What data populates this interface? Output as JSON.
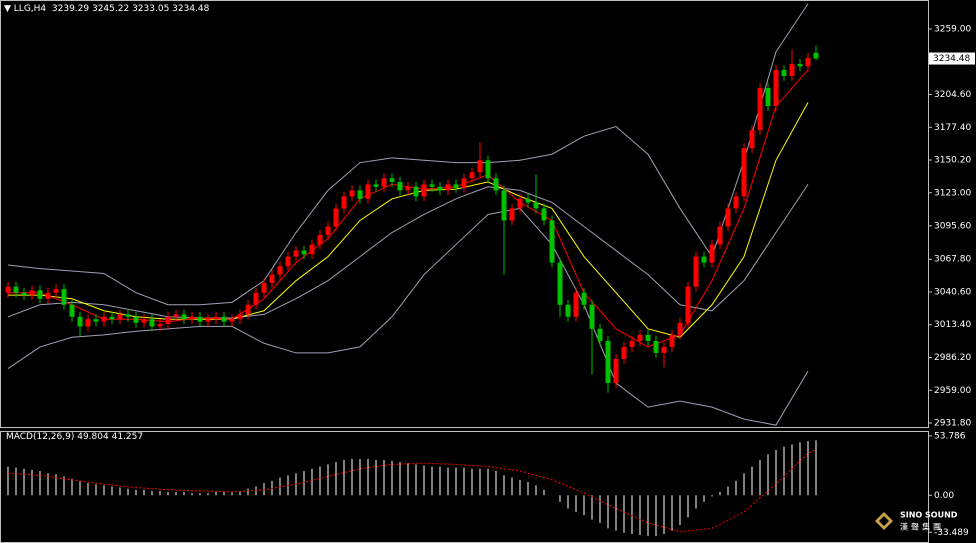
{
  "chart_data": [
    {
      "type": "candlestick",
      "title": "LLG,H4",
      "up_color": "#ff0000",
      "down_color": "#00c000",
      "open": [
        3040,
        3045,
        3040,
        3038,
        3042,
        3035,
        3040,
        3043,
        3030,
        3020,
        3012,
        3018,
        3016,
        3020,
        3018,
        3022,
        3020,
        3015,
        3018,
        3012,
        3014,
        3020,
        3022,
        3018,
        3020,
        3016,
        3018,
        3020,
        3016,
        3018,
        3022,
        3030,
        3040,
        3048,
        3055,
        3062,
        3070,
        3075,
        3072,
        3080,
        3088,
        3095,
        3110,
        3120,
        3125,
        3118,
        3130,
        3128,
        3135,
        3132,
        3125,
        3128,
        3120,
        3130,
        3128,
        3125,
        3130,
        3127,
        3135,
        3140,
        3150,
        3135,
        3125,
        3100,
        3110,
        3118,
        3115,
        3110,
        3100,
        3065,
        3030,
        3020,
        3040,
        3030,
        3010,
        3000,
        2965,
        2985,
        2995,
        3000,
        3005,
        3000,
        2990,
        2995,
        3005,
        3015,
        3045,
        3070,
        3065,
        3080,
        3095,
        3110,
        3120,
        3160,
        3175,
        3210,
        3195,
        3225,
        3220,
        3230,
        3228,
        3239.29
      ],
      "high": [
        3049,
        3049,
        3044,
        3046,
        3046,
        3044,
        3047,
        3047,
        3034,
        3024,
        3022,
        3022,
        3024,
        3024,
        3026,
        3026,
        3024,
        3022,
        3022,
        3018,
        3024,
        3026,
        3026,
        3024,
        3024,
        3022,
        3024,
        3024,
        3022,
        3026,
        3034,
        3044,
        3052,
        3059,
        3066,
        3074,
        3079,
        3079,
        3084,
        3092,
        3099,
        3114,
        3124,
        3129,
        3129,
        3134,
        3134,
        3139,
        3139,
        3136,
        3132,
        3132,
        3134,
        3134,
        3132,
        3134,
        3134,
        3139,
        3144,
        3165,
        3154,
        3139,
        3129,
        3114,
        3122,
        3122,
        3138,
        3114,
        3104,
        3069,
        3034,
        3044,
        3044,
        3034,
        3014,
        3004,
        2989,
        2999,
        3004,
        3009,
        3009,
        3004,
        2999,
        3009,
        3019,
        3049,
        3074,
        3074,
        3084,
        3099,
        3114,
        3124,
        3164,
        3179,
        3214,
        3214,
        3229,
        3229,
        3242,
        3234,
        3239,
        3245.22
      ],
      "low": [
        3036,
        3036,
        3034,
        3034,
        3031,
        3031,
        3036,
        3026,
        3016,
        3004,
        3008,
        3012,
        3012,
        3014,
        3014,
        3016,
        3011,
        3011,
        3008,
        3008,
        3010,
        3016,
        3014,
        3014,
        3012,
        3012,
        3014,
        3012,
        3012,
        3014,
        3018,
        3026,
        3036,
        3044,
        3051,
        3058,
        3066,
        3068,
        3068,
        3076,
        3084,
        3091,
        3106,
        3116,
        3114,
        3114,
        3124,
        3124,
        3128,
        3121,
        3121,
        3116,
        3116,
        3124,
        3121,
        3121,
        3123,
        3123,
        3131,
        3136,
        3131,
        3121,
        3055,
        3096,
        3106,
        3111,
        3106,
        3096,
        3061,
        3020,
        3016,
        3016,
        3026,
        2972,
        2996,
        2957,
        2961,
        2981,
        2991,
        2996,
        2996,
        2986,
        2978,
        2991,
        3001,
        3011,
        3041,
        3061,
        3061,
        3076,
        3091,
        3106,
        3116,
        3156,
        3171,
        3191,
        3191,
        3216,
        3216,
        3224,
        3224,
        3233.05
      ],
      "close": [
        3045,
        3040,
        3038,
        3042,
        3035,
        3040,
        3043,
        3030,
        3020,
        3012,
        3018,
        3016,
        3020,
        3018,
        3022,
        3020,
        3015,
        3018,
        3012,
        3014,
        3020,
        3022,
        3018,
        3020,
        3016,
        3018,
        3020,
        3016,
        3018,
        3022,
        3030,
        3040,
        3048,
        3055,
        3062,
        3070,
        3075,
        3072,
        3080,
        3088,
        3095,
        3110,
        3120,
        3125,
        3118,
        3130,
        3128,
        3135,
        3132,
        3125,
        3128,
        3120,
        3130,
        3128,
        3125,
        3130,
        3127,
        3135,
        3140,
        3150,
        3135,
        3125,
        3100,
        3110,
        3118,
        3115,
        3110,
        3100,
        3065,
        3030,
        3020,
        3040,
        3030,
        3010,
        3000,
        2965,
        2985,
        2995,
        3000,
        3005,
        3000,
        2990,
        2995,
        3005,
        3015,
        3045,
        3070,
        3065,
        3080,
        3095,
        3110,
        3120,
        3160,
        3175,
        3210,
        3195,
        3225,
        3220,
        3230,
        3228,
        3235,
        3234.48
      ],
      "overlays": {
        "x": [
          0,
          4,
          8,
          12,
          16,
          20,
          24,
          28,
          32,
          36,
          40,
          44,
          48,
          52,
          56,
          60,
          64,
          68,
          72,
          76,
          80,
          84,
          88,
          92,
          96,
          100
        ],
        "series": [
          {
            "color": "#a0a0b4",
            "values": [
              3063,
              3060,
              3058,
              3056,
              3040,
              3030,
              3030,
              3032,
              3050,
              3090,
              3125,
              3148,
              3152,
              3150,
              3148,
              3148,
              3150,
              3155,
              3170,
              3178,
              3155,
              3110,
              3070,
              3150,
              3240,
              3280
            ]
          },
          {
            "color": "#a0a0b4",
            "values": [
              3020,
              3030,
              3032,
              3030,
              3025,
              3020,
              3019,
              3019,
              3022,
              3035,
              3050,
              3070,
              3090,
              3105,
              3118,
              3128,
              3125,
              3115,
              3095,
              3075,
              3055,
              3030,
              3025,
              3050,
              3090,
              3130
            ]
          },
          {
            "color": "#a0a0b4",
            "values": [
              2977,
              2995,
              3003,
              3005,
              3008,
              3010,
              3012,
              3012,
              2998,
              2990,
              2990,
              2995,
              3020,
              3055,
              3080,
              3105,
              3110,
              3080,
              3030,
              2965,
              2945,
              2950,
              2945,
              2935,
              2930,
              2975
            ]
          },
          {
            "color": "#ffff00",
            "values": [
              3038,
              3038,
              3035,
              3025,
              3020,
              3018,
              3018,
              3018,
              3025,
              3050,
              3070,
              3100,
              3118,
              3125,
              3126,
              3132,
              3120,
              3110,
              3070,
              3040,
              3010,
              3003,
              3030,
              3070,
              3150,
              3198
            ]
          },
          {
            "color": "#ff0000",
            "values": [
              3040,
              3040,
              3030,
              3018,
              3018,
              3016,
              3019,
              3018,
              3035,
              3065,
              3085,
              3118,
              3130,
              3126,
              3128,
              3138,
              3115,
              3100,
              3040,
              3010,
              2995,
              3005,
              3050,
              3110,
              3195,
              3225
            ]
          }
        ]
      },
      "ylim": [
        2927.65,
        3283.1
      ],
      "yticks": [
        {
          "value": 3259,
          "label": "3259.00"
        },
        {
          "value": 3204.6,
          "label": "3204.60"
        },
        {
          "value": 3177.4,
          "label": "3177.40"
        },
        {
          "value": 3150.2,
          "label": "3150.20"
        },
        {
          "value": 3123,
          "label": "3123.00"
        },
        {
          "value": 3095.6,
          "label": "3095.60"
        },
        {
          "value": 3067.8,
          "label": "3067.80"
        },
        {
          "value": 3040.6,
          "label": "3040.60"
        },
        {
          "value": 3013.4,
          "label": "3013.40"
        },
        {
          "value": 2986.2,
          "label": "2986.20"
        },
        {
          "value": 2959,
          "label": "2959.00"
        },
        {
          "value": 2931.8,
          "label": "2931.80"
        }
      ]
    },
    {
      "type": "macd",
      "title": "MACD(12,26,9)",
      "color": "#ffffff",
      "values": [
        26,
        25,
        24,
        23,
        22,
        20,
        19,
        17,
        15,
        13,
        11,
        10,
        9,
        8,
        7,
        6,
        5,
        5,
        4,
        4,
        3,
        3,
        3,
        2,
        2,
        2,
        3,
        3,
        3,
        4,
        6,
        8,
        11,
        13,
        16,
        18,
        20,
        22,
        24,
        26,
        28,
        30,
        32,
        33,
        33,
        33,
        32,
        32,
        31,
        30,
        29,
        28,
        27,
        26,
        26,
        25,
        25,
        25,
        24,
        24,
        24,
        22,
        18,
        16,
        14,
        12,
        9,
        5,
        0,
        -6,
        -12,
        -15,
        -18,
        -22,
        -25,
        -30,
        -32,
        -34,
        -35,
        -36,
        -37,
        -37,
        -35,
        -32,
        -27,
        -20,
        -12,
        -6,
        -1,
        3,
        8,
        13,
        20,
        26,
        32,
        37,
        41,
        44,
        46,
        48,
        49,
        49.804
      ],
      "signal": {
        "color": "#ff0000",
        "x": [
          0,
          4,
          8,
          12,
          16,
          20,
          24,
          28,
          32,
          36,
          40,
          44,
          48,
          52,
          56,
          60,
          64,
          68,
          72,
          76,
          80,
          84,
          88,
          92,
          96,
          100,
          101
        ],
        "values": [
          20,
          18,
          14,
          10,
          7,
          5,
          4,
          3,
          5,
          10,
          17,
          24,
          28,
          29,
          28,
          26,
          22,
          14,
          2,
          -12,
          -25,
          -33,
          -30,
          -15,
          10,
          38,
          41.257
        ]
      },
      "ylim": [
        -43.2,
        58.2
      ],
      "yticks": [
        53.786,
        {
          "value": 0,
          "label": "0.00"
        },
        -33.489
      ]
    }
  ],
  "logo": {
    "name": "SINO SOUND",
    "subtitle": "漢聲集團"
  }
}
